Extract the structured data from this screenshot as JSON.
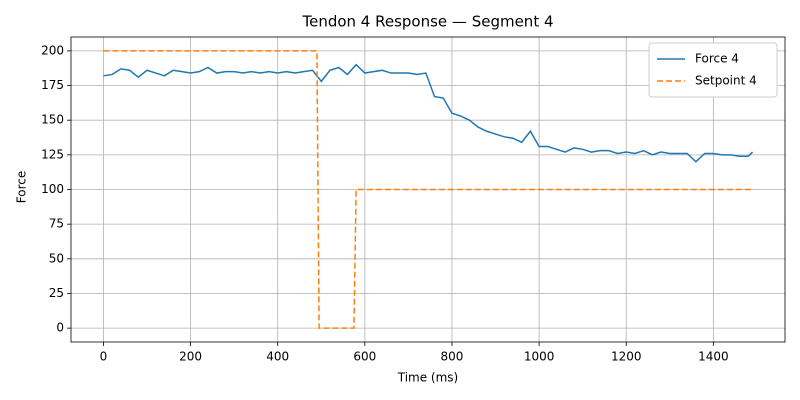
{
  "chart_data": {
    "type": "line",
    "title": "Tendon 4 Response  — Segment 4",
    "x_label": "Time (ms)",
    "y_label": "Force",
    "xlim": [
      -74.5,
      1564.5
    ],
    "ylim": [
      -10,
      210
    ],
    "xticks": [
      0,
      200,
      400,
      600,
      800,
      1000,
      1200,
      1400
    ],
    "yticks": [
      0,
      25,
      50,
      75,
      100,
      125,
      150,
      175,
      200
    ],
    "grid": true,
    "legend": "upper right",
    "series": [
      {
        "name": "Force 4",
        "color": "#1f77b4",
        "linestyle": "solid",
        "x": [
          0,
          20,
          40,
          60,
          80,
          100,
          120,
          140,
          160,
          180,
          200,
          220,
          240,
          260,
          280,
          300,
          320,
          340,
          360,
          380,
          400,
          420,
          440,
          460,
          480,
          500,
          520,
          540,
          560,
          580,
          600,
          620,
          640,
          660,
          680,
          700,
          720,
          740,
          760,
          780,
          800,
          820,
          840,
          860,
          880,
          900,
          920,
          940,
          960,
          980,
          1000,
          1020,
          1040,
          1060,
          1080,
          1100,
          1120,
          1140,
          1160,
          1180,
          1200,
          1220,
          1240,
          1260,
          1280,
          1300,
          1320,
          1340,
          1360,
          1380,
          1400,
          1420,
          1440,
          1460,
          1480,
          1490
        ],
        "values": [
          182,
          183,
          187,
          186,
          181,
          186,
          184,
          182,
          186,
          185,
          184,
          185,
          188,
          184,
          185,
          185,
          184,
          185,
          184,
          185,
          184,
          185,
          184,
          185,
          186,
          178,
          186,
          188,
          183,
          190,
          184,
          185,
          186,
          184,
          184,
          184,
          183,
          184,
          167,
          166,
          155,
          153,
          150,
          145,
          142,
          140,
          138,
          137,
          134,
          142,
          131,
          131,
          129,
          127,
          130,
          129,
          127,
          128,
          128,
          126,
          127,
          126,
          128,
          125,
          127,
          126,
          126,
          126,
          120,
          126,
          126,
          125,
          125,
          124,
          124,
          127
        ]
      },
      {
        "name": "Setpoint 4",
        "color": "#ff7f0e",
        "linestyle": "dashed",
        "x": [
          0,
          490,
          495,
          575,
          580,
          1490
        ],
        "values": [
          200,
          200,
          0,
          0,
          100,
          100
        ]
      }
    ]
  }
}
